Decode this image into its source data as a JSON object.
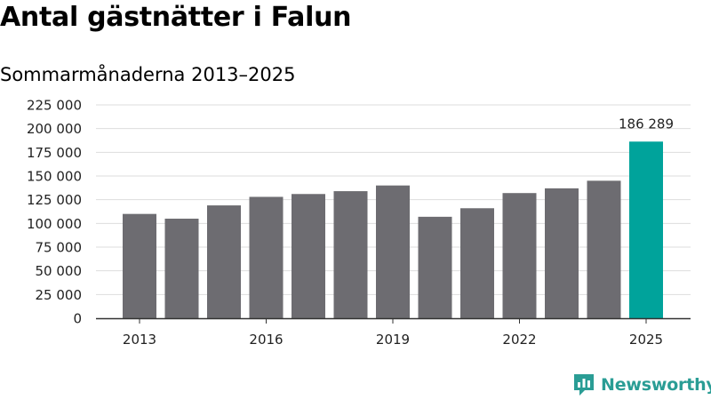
{
  "header": {
    "title": "Antal gästnätter i Falun",
    "subtitle": "Sommarmånaderna 2013–2025"
  },
  "brand": {
    "name": "Newsworthy",
    "color": "#2a9d95"
  },
  "colors": {
    "bar": "#6d6c71",
    "highlight": "#00a39b",
    "grid": "#dddddd",
    "axis": "#333333"
  },
  "chart_data": {
    "type": "bar",
    "title": "Antal gästnätter i Falun",
    "subtitle": "Sommarmånaderna 2013–2025",
    "categories": [
      "2013",
      "2014",
      "2015",
      "2016",
      "2017",
      "2018",
      "2019",
      "2020",
      "2021",
      "2022",
      "2023",
      "2024",
      "2025"
    ],
    "values": [
      110000,
      105000,
      119000,
      128000,
      131000,
      134000,
      140000,
      107000,
      116000,
      132000,
      137000,
      145000,
      186289
    ],
    "x_tick_labels": [
      "2013",
      "2016",
      "2019",
      "2022",
      "2025"
    ],
    "y_tick_labels": [
      "0",
      "25 000",
      "50 000",
      "75 000",
      "100 000",
      "125 000",
      "150 000",
      "175 000",
      "200 000",
      "225 000"
    ],
    "ylim": [
      0,
      225000
    ],
    "y_ticks": [
      0,
      25000,
      50000,
      75000,
      100000,
      125000,
      150000,
      175000,
      200000,
      225000
    ],
    "highlight_index": 12,
    "data_labels": [
      {
        "index": 12,
        "text": "186 289"
      }
    ],
    "xlabel": "",
    "ylabel": "",
    "grid": true,
    "legend": "none"
  }
}
